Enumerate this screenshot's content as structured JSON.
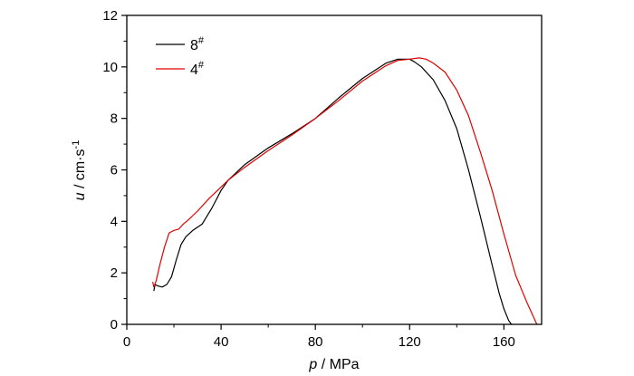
{
  "chart_data": {
    "type": "line",
    "xlabel": {
      "var": "p",
      "rest": " / MPa"
    },
    "ylabel": {
      "var": "u",
      "rest": " / cm·s",
      "sup": "-1"
    },
    "xlim": [
      0,
      176
    ],
    "ylim": [
      0,
      12
    ],
    "xticks": [
      0,
      40,
      80,
      120,
      160
    ],
    "yticks": [
      0,
      2,
      4,
      6,
      8,
      10,
      12
    ],
    "grid": false,
    "legend_position": "top-left",
    "series": [
      {
        "name": "8",
        "sup": "#",
        "color": "#000000",
        "x": [
          11.5,
          12,
          13,
          15,
          17,
          19,
          21,
          23,
          25,
          28,
          32,
          36,
          40,
          43,
          50,
          60,
          70,
          80,
          90,
          100,
          110,
          115,
          118,
          120,
          122,
          125,
          130,
          135,
          140,
          145,
          150,
          155,
          158,
          160,
          162,
          163,
          163.5
        ],
        "y": [
          1.3,
          1.55,
          1.5,
          1.45,
          1.55,
          1.85,
          2.5,
          3.1,
          3.4,
          3.65,
          3.9,
          4.5,
          5.2,
          5.6,
          6.2,
          6.85,
          7.4,
          8.0,
          8.8,
          9.55,
          10.15,
          10.3,
          10.3,
          10.3,
          10.2,
          10.0,
          9.5,
          8.7,
          7.6,
          6.0,
          4.2,
          2.3,
          1.2,
          0.6,
          0.15,
          0.02,
          0
        ]
      },
      {
        "name": "4",
        "sup": "#",
        "color": "#e00000",
        "x": [
          11,
          11.5,
          12.5,
          14,
          16,
          18,
          20,
          22,
          24,
          26,
          30,
          35,
          43,
          50,
          60,
          70,
          80,
          90,
          100,
          110,
          115,
          120,
          124,
          127,
          130,
          135,
          140,
          145,
          150,
          155,
          160,
          165,
          170,
          172,
          173.5,
          174
        ],
        "y": [
          1.65,
          1.45,
          1.7,
          2.3,
          3.0,
          3.55,
          3.65,
          3.7,
          3.9,
          4.05,
          4.4,
          4.9,
          5.6,
          6.1,
          6.75,
          7.35,
          8.0,
          8.7,
          9.45,
          10.05,
          10.25,
          10.3,
          10.35,
          10.3,
          10.15,
          9.8,
          9.1,
          8.1,
          6.7,
          5.2,
          3.5,
          1.9,
          0.8,
          0.4,
          0.1,
          0
        ]
      }
    ]
  }
}
